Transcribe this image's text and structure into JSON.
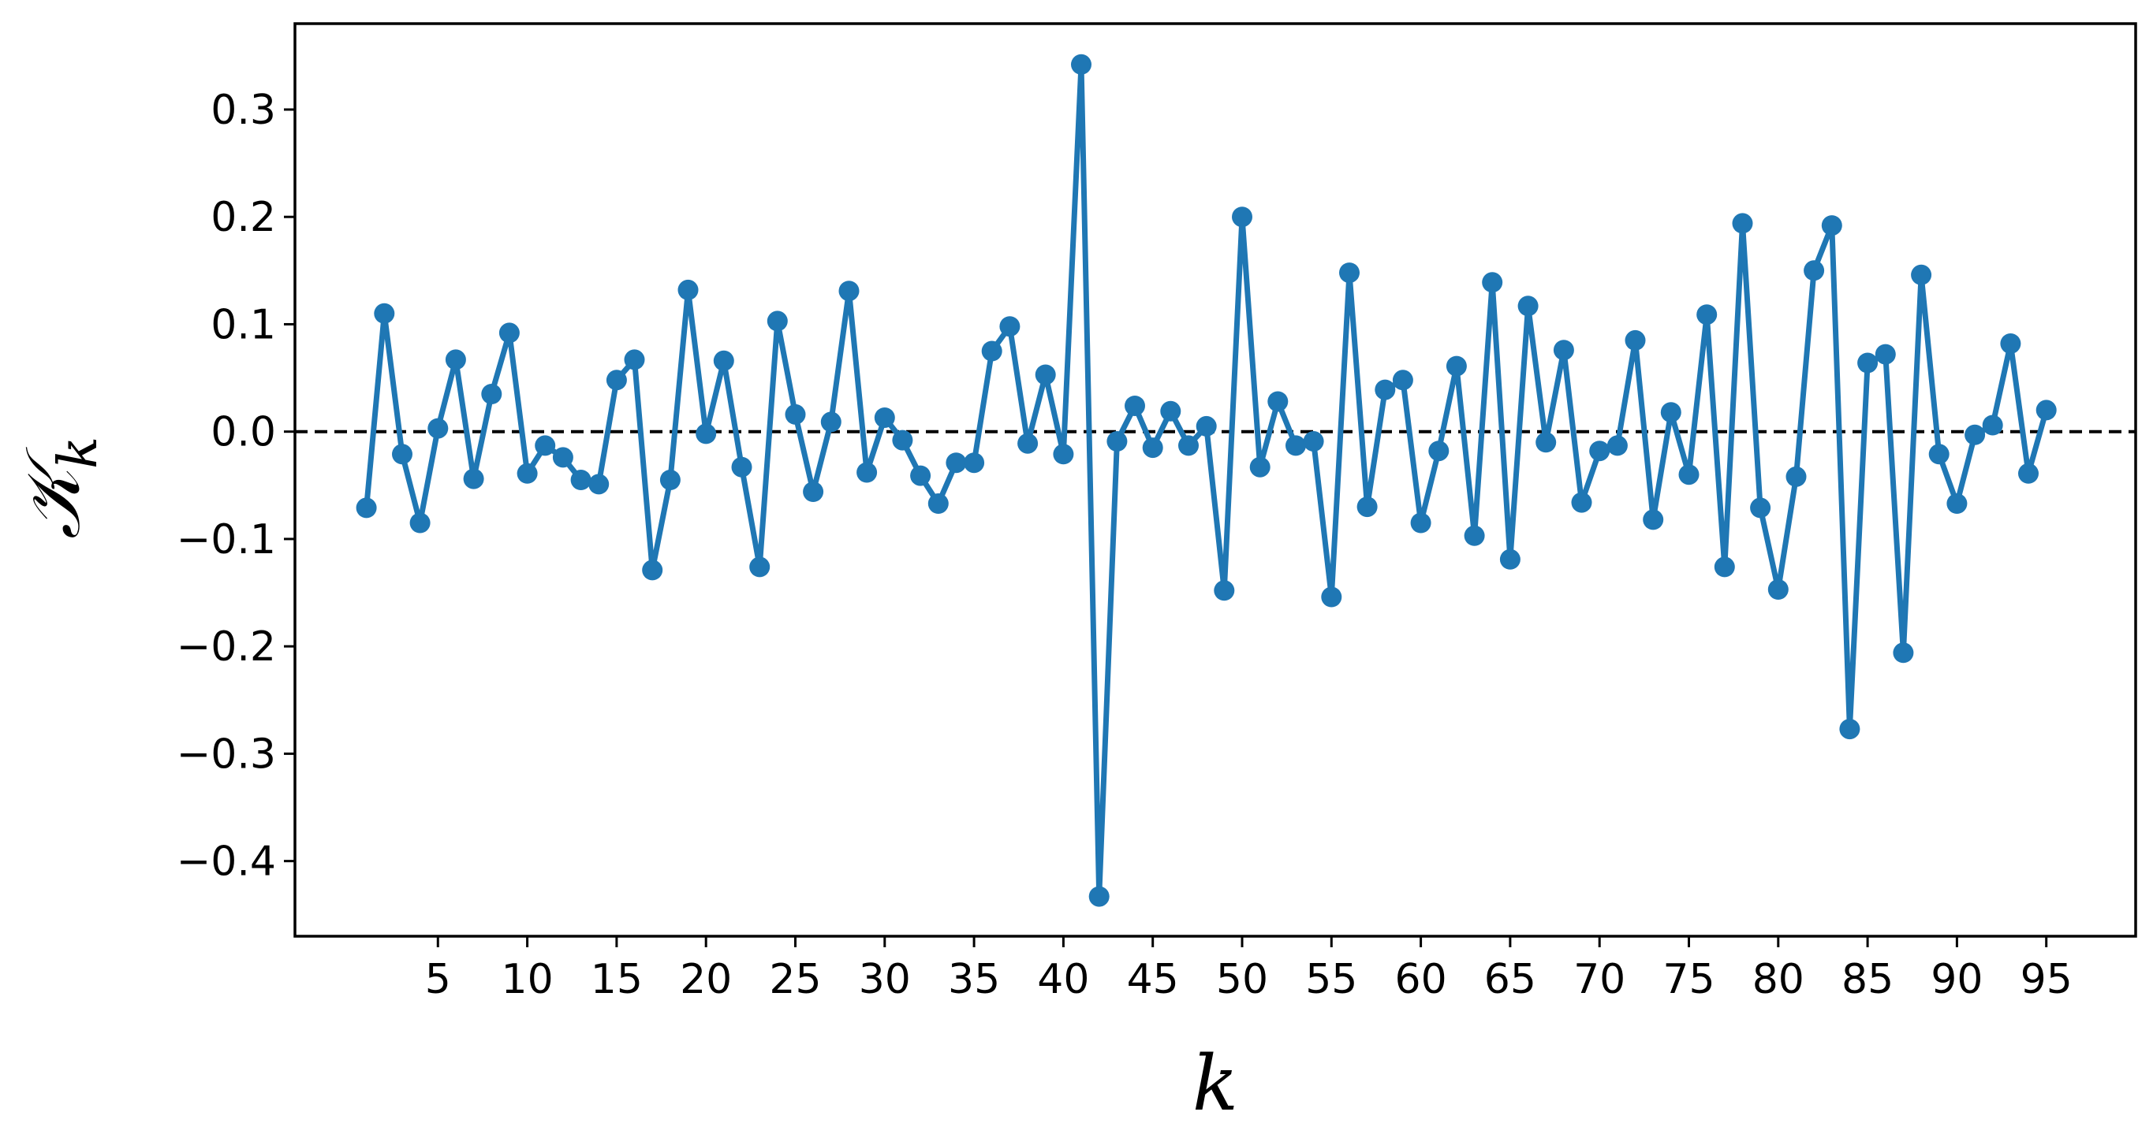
{
  "chart_data": {
    "type": "line",
    "xlabel": "k",
    "ylabel": "𝒦",
    "ylabel_subscript": "k",
    "xlim": [
      -3,
      100
    ],
    "ylim": [
      -0.47,
      0.38
    ],
    "x_ticks": [
      5,
      10,
      15,
      20,
      25,
      30,
      35,
      40,
      45,
      50,
      55,
      60,
      65,
      70,
      75,
      80,
      85,
      90,
      95
    ],
    "x_tick_labels": [
      "5",
      "10",
      "15",
      "20",
      "25",
      "30",
      "35",
      "40",
      "45",
      "50",
      "55",
      "60",
      "65",
      "70",
      "75",
      "80",
      "85",
      "90",
      "95"
    ],
    "y_ticks": [
      0.3,
      0.2,
      0.1,
      0.0,
      -0.1,
      -0.2,
      -0.3,
      -0.4
    ],
    "y_tick_labels": [
      "0.3",
      "0.2",
      "0.1",
      "0.0",
      "−0.1",
      "−0.2",
      "−0.3",
      "−0.4"
    ],
    "reference_line": {
      "y": 0.0,
      "style": "dashed",
      "color": "#000000"
    },
    "grid": false,
    "series": [
      {
        "color": "#1f77b4",
        "marker": "circle",
        "x": [
          1,
          2,
          3,
          4,
          5,
          6,
          7,
          8,
          9,
          10,
          11,
          12,
          13,
          14,
          15,
          16,
          17,
          18,
          19,
          20,
          21,
          22,
          23,
          24,
          25,
          26,
          27,
          28,
          29,
          30,
          31,
          32,
          33,
          34,
          35,
          36,
          37,
          38,
          39,
          40,
          41,
          42,
          43,
          44,
          45,
          46,
          47,
          48,
          49,
          50,
          51,
          52,
          53,
          54,
          55,
          56,
          57,
          58,
          59,
          60,
          61,
          62,
          63,
          64,
          65,
          66,
          67,
          68,
          69,
          70,
          71,
          72,
          73,
          74,
          75,
          76,
          77,
          78,
          79,
          80,
          81,
          82,
          83,
          84,
          85,
          86,
          87,
          88,
          89,
          90,
          91,
          92,
          93,
          94,
          95
        ],
        "y": [
          -0.071,
          0.11,
          -0.021,
          -0.085,
          0.003,
          0.067,
          -0.044,
          0.035,
          0.092,
          -0.039,
          -0.013,
          -0.024,
          -0.045,
          -0.049,
          0.048,
          0.067,
          -0.129,
          -0.045,
          0.132,
          -0.002,
          0.066,
          -0.033,
          -0.126,
          0.103,
          0.016,
          -0.056,
          0.009,
          0.131,
          -0.038,
          0.013,
          -0.008,
          -0.041,
          -0.067,
          -0.029,
          -0.029,
          0.075,
          0.098,
          -0.011,
          0.053,
          -0.021,
          0.342,
          -0.433,
          -0.009,
          0.024,
          -0.015,
          0.019,
          -0.013,
          0.005,
          -0.148,
          0.2,
          -0.033,
          0.028,
          -0.013,
          -0.009,
          -0.154,
          0.148,
          -0.07,
          0.039,
          0.048,
          -0.085,
          -0.018,
          0.061,
          -0.097,
          0.139,
          -0.119,
          0.117,
          -0.01,
          0.076,
          -0.066,
          -0.018,
          -0.013,
          0.085,
          -0.082,
          0.018,
          -0.04,
          0.109,
          -0.126,
          0.194,
          -0.071,
          -0.147,
          -0.042,
          0.15,
          0.192,
          -0.277,
          0.064,
          0.072,
          -0.206,
          0.146,
          -0.021,
          -0.067,
          -0.003,
          0.006,
          0.082,
          -0.039,
          0.02
        ]
      }
    ]
  }
}
